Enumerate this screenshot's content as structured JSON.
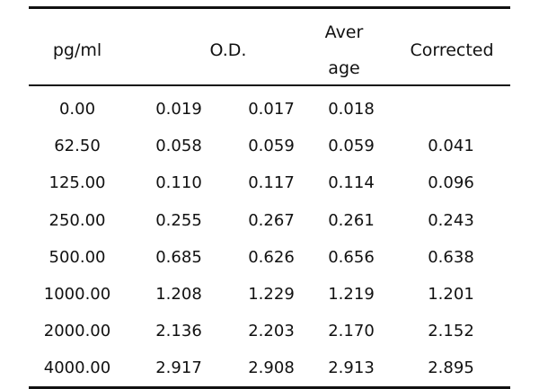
{
  "table": {
    "headers": {
      "conc": "pg/ml",
      "od": "O.D.",
      "avg_line1": "Aver",
      "avg_line2": "age",
      "corrected": "Corrected"
    },
    "rows": [
      [
        "0.00",
        "0.019",
        "0.017",
        "0.018",
        ""
      ],
      [
        "62.50",
        "0.058",
        "0.059",
        "0.059",
        "0.041"
      ],
      [
        "125.00",
        "0.110",
        "0.117",
        "0.114",
        "0.096"
      ],
      [
        "250.00",
        "0.255",
        "0.267",
        "0.261",
        "0.243"
      ],
      [
        "500.00",
        "0.685",
        "0.626",
        "0.656",
        "0.638"
      ],
      [
        "1000.00",
        "1.208",
        "1.229",
        "1.219",
        "1.201"
      ],
      [
        "2000.00",
        "2.136",
        "2.203",
        "2.170",
        "2.152"
      ],
      [
        "4000.00",
        "2.917",
        "2.908",
        "2.913",
        "2.895"
      ]
    ]
  }
}
